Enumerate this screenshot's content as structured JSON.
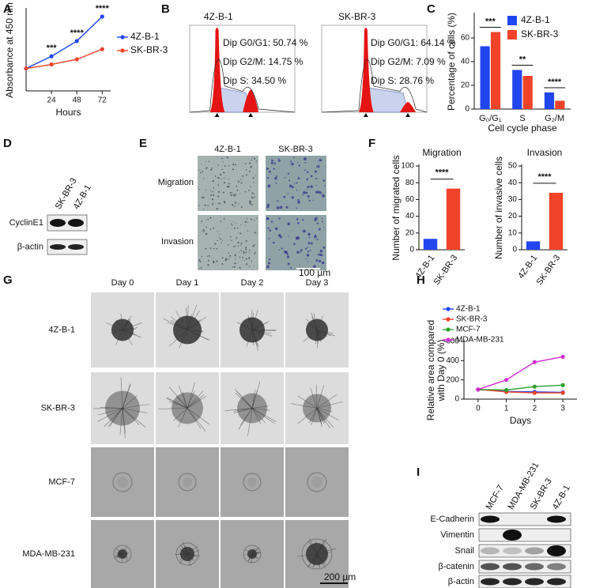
{
  "panel_labels": [
    "A",
    "B",
    "C",
    "D",
    "E",
    "F",
    "G",
    "H",
    "I"
  ],
  "chart_data": [
    {
      "type": "line",
      "xlabel": "Hours",
      "ylabel": "Absorbance at 450 nm",
      "x": [
        0,
        24,
        48,
        72
      ],
      "xlim": [
        0,
        80
      ],
      "xticks": [
        24,
        48,
        72
      ],
      "ylim": [
        0,
        4
      ],
      "legend": "right",
      "series": [
        {
          "name": "4Z-B-1",
          "color": "#2146f0",
          "values": [
            1.1,
            1.7,
            2.45,
            3.65
          ]
        },
        {
          "name": "SK-BR-3",
          "color": "#f0432a",
          "values": [
            1.1,
            1.3,
            1.55,
            2.05
          ]
        }
      ],
      "annotations": [
        null,
        "***",
        "****",
        "****"
      ]
    },
    {
      "type": "bar",
      "xlabel": "Cell cycle phase",
      "ylabel": "Percentage of cells (%)",
      "categories": [
        "G₀/G₁",
        "S",
        "G₂/M"
      ],
      "ylim": [
        0,
        80
      ],
      "yticks": [
        0,
        20,
        40,
        60
      ],
      "legend": "upper right",
      "series": [
        {
          "name": "4Z-B-1",
          "color": "#2146f0",
          "values": [
            53,
            33,
            14
          ]
        },
        {
          "name": "SK-BR-3",
          "color": "#f0432a",
          "values": [
            65,
            28,
            7
          ]
        }
      ],
      "annotations": [
        "***",
        "**",
        "****"
      ]
    },
    {
      "type": "bar",
      "title": "Migration",
      "ylabel": "Number of migrated cells",
      "categories": [
        "4Z-B-1",
        "SK-BR-3"
      ],
      "values": [
        13,
        73
      ],
      "colors": [
        "#2146f0",
        "#f0432a"
      ],
      "ylim": [
        0,
        100
      ],
      "yticks": [
        0,
        20,
        40,
        60,
        80,
        100
      ],
      "annotation": "****"
    },
    {
      "type": "bar",
      "title": "Invasion",
      "ylabel": "Number of invasive cells",
      "categories": [
        "4Z-B-1",
        "SK-BR-3"
      ],
      "values": [
        5,
        34
      ],
      "colors": [
        "#2146f0",
        "#f0432a"
      ],
      "ylim": [
        0,
        50
      ],
      "yticks": [
        0,
        10,
        20,
        30,
        40,
        50
      ],
      "annotation": "****"
    },
    {
      "type": "line",
      "xlabel": "Days",
      "ylabel": [
        "Relative area compared",
        "with Day 0 (%)"
      ],
      "x": [
        0,
        1,
        2,
        3
      ],
      "xlim": [
        -0.5,
        3.5
      ],
      "xticks": [
        0,
        1,
        2,
        3
      ],
      "ylim": [
        0,
        600
      ],
      "yticks": [
        0,
        200,
        400,
        600
      ],
      "legend": "top",
      "series": [
        {
          "name": "4Z-B-1",
          "color": "#2146f0",
          "values": [
            100,
            80,
            75,
            70
          ]
        },
        {
          "name": "SK-BR-3",
          "color": "#f0432a",
          "values": [
            100,
            75,
            65,
            65
          ]
        },
        {
          "name": "MCF-7",
          "color": "#2ca02c",
          "values": [
            100,
            95,
            130,
            145
          ]
        },
        {
          "name": "MDA-MB-231",
          "color": "#d22cd2",
          "values": [
            100,
            200,
            385,
            440
          ]
        }
      ]
    }
  ],
  "flow": [
    {
      "name": "4Z-B-1",
      "lines": [
        "Dip G0/G1: 50.74 %",
        "Dip G2/M: 14.75 %",
        "Dip S: 34.50 %"
      ]
    },
    {
      "name": "SK-BR-3",
      "lines": [
        "Dip G0/G1: 64.14 %",
        "Dip G2/M: 7.09 %",
        "Dip S: 28.76 %"
      ]
    }
  ],
  "blot_D": {
    "lanes": [
      "SK-BR-3",
      "4Z-B-1"
    ],
    "rows": [
      "CyclinE1",
      "β-actin"
    ]
  },
  "images_E": {
    "columns": [
      "4Z-B-1",
      "SK-BR-3"
    ],
    "rows": [
      "Migration",
      "Invasion"
    ],
    "scale_bar": "100 µm"
  },
  "images_G": {
    "columns": [
      "Day 0",
      "Day 1",
      "Day 2",
      "Day 3"
    ],
    "rows": [
      "4Z-B-1",
      "SK-BR-3",
      "MCF-7",
      "MDA-MB-231"
    ],
    "scale_bar": "200 µm"
  },
  "blot_I": {
    "lanes": [
      "MCF-7",
      "MDA-MB-231",
      "SK-BR-3",
      "4Z-B-1"
    ],
    "rows": [
      "E-Cadherin",
      "Vimentin",
      "Snail",
      "β-catenin",
      "β-actin"
    ]
  }
}
